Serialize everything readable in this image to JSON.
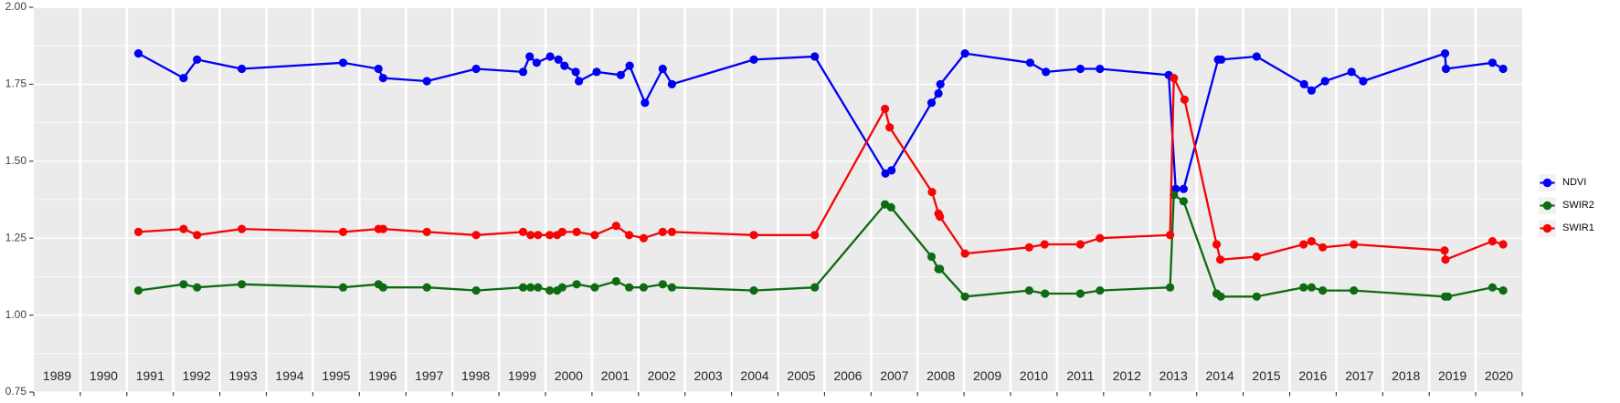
{
  "figure": {
    "background_color": "#FFFFFF",
    "panel_background_color": "#EBEBEB",
    "grid_color": "#FFFFFF",
    "axis_text_color": "#404040",
    "year_label_color": "#262626",
    "tick_color": "#333333"
  },
  "legend": {
    "items": [
      {
        "label": "NDVI",
        "color": "#0000F5"
      },
      {
        "label": "SWIR2",
        "color": "#0E6B12"
      },
      {
        "label": "SWIR1",
        "color": "#F50505"
      }
    ],
    "key_background": "#F2F2F2"
  },
  "chart_data": {
    "type": "line",
    "title": "",
    "xlabel": "",
    "ylabel": "",
    "ylim": [
      0.75,
      2.0
    ],
    "xlim": [
      1989,
      2021
    ],
    "grid": "on",
    "legend_position": "right",
    "y_tick_labels": [
      "2.00",
      "1.75",
      "1.50",
      "1.25",
      "1.00",
      "0.75"
    ],
    "y_tick_values": [
      2.0,
      1.75,
      1.5,
      1.25,
      1.0,
      0.75
    ],
    "y_minor_values": [
      1.875,
      1.625,
      1.375,
      1.125,
      0.875
    ],
    "x_years": [
      1989,
      1990,
      1991,
      1992,
      1993,
      1994,
      1995,
      1996,
      1997,
      1998,
      1999,
      2000,
      2001,
      2002,
      2003,
      2004,
      2005,
      2006,
      2007,
      2008,
      2009,
      2010,
      2011,
      2012,
      2013,
      2014,
      2015,
      2016,
      2017,
      2018,
      2019,
      2020
    ],
    "x_note": "x values are fractional years (year + day-of-year fraction); years 1989, 1990, 1994, 2003, 2006, 2012 and 2018 have no observations",
    "series": [
      {
        "name": "NDVI",
        "color": "#0000F5",
        "points": [
          [
            1991.25,
            1.85
          ],
          [
            1992.22,
            1.77
          ],
          [
            1992.51,
            1.83
          ],
          [
            1993.47,
            1.8
          ],
          [
            1995.65,
            1.82
          ],
          [
            1996.41,
            1.8
          ],
          [
            1996.51,
            1.77
          ],
          [
            1997.45,
            1.76
          ],
          [
            1998.51,
            1.8
          ],
          [
            1999.52,
            1.79
          ],
          [
            1999.66,
            1.84
          ],
          [
            1999.81,
            1.82
          ],
          [
            2000.1,
            1.84
          ],
          [
            2000.28,
            1.83
          ],
          [
            2000.41,
            1.81
          ],
          [
            2000.65,
            1.79
          ],
          [
            2000.72,
            1.76
          ],
          [
            2001.1,
            1.79
          ],
          [
            2001.62,
            1.78
          ],
          [
            2001.81,
            1.81
          ],
          [
            2002.14,
            1.69
          ],
          [
            2002.52,
            1.8
          ],
          [
            2002.72,
            1.75
          ],
          [
            2004.48,
            1.83
          ],
          [
            2005.79,
            1.84
          ],
          [
            2007.31,
            1.46
          ],
          [
            2007.44,
            1.47
          ],
          [
            2008.3,
            1.69
          ],
          [
            2008.45,
            1.72
          ],
          [
            2008.49,
            1.75
          ],
          [
            2009.02,
            1.85
          ],
          [
            2010.42,
            1.82
          ],
          [
            2010.76,
            1.79
          ],
          [
            2011.5,
            1.8
          ],
          [
            2011.92,
            1.8
          ],
          [
            2013.4,
            1.78
          ],
          [
            2013.55,
            1.41
          ],
          [
            2013.72,
            1.41
          ],
          [
            2014.46,
            1.83
          ],
          [
            2014.53,
            1.83
          ],
          [
            2015.29,
            1.84
          ],
          [
            2016.31,
            1.75
          ],
          [
            2016.47,
            1.73
          ],
          [
            2016.76,
            1.76
          ],
          [
            2017.33,
            1.79
          ],
          [
            2017.58,
            1.76
          ],
          [
            2019.34,
            1.85
          ],
          [
            2019.36,
            1.8
          ],
          [
            2020.36,
            1.82
          ],
          [
            2020.59,
            1.8
          ]
        ]
      },
      {
        "name": "SWIR2",
        "color": "#0E6B12",
        "points": [
          [
            1991.25,
            1.08
          ],
          [
            1992.22,
            1.1
          ],
          [
            1992.51,
            1.09
          ],
          [
            1993.47,
            1.1
          ],
          [
            1995.65,
            1.09
          ],
          [
            1996.41,
            1.1
          ],
          [
            1996.51,
            1.09
          ],
          [
            1997.45,
            1.09
          ],
          [
            1998.51,
            1.08
          ],
          [
            1999.52,
            1.09
          ],
          [
            1999.68,
            1.09
          ],
          [
            1999.84,
            1.09
          ],
          [
            2000.09,
            1.08
          ],
          [
            2000.25,
            1.08
          ],
          [
            2000.36,
            1.09
          ],
          [
            2000.67,
            1.1
          ],
          [
            2001.06,
            1.09
          ],
          [
            2001.52,
            1.11
          ],
          [
            2001.8,
            1.09
          ],
          [
            2002.11,
            1.09
          ],
          [
            2002.52,
            1.1
          ],
          [
            2002.72,
            1.09
          ],
          [
            2004.48,
            1.08
          ],
          [
            2005.79,
            1.09
          ],
          [
            2007.3,
            1.36
          ],
          [
            2007.43,
            1.35
          ],
          [
            2008.3,
            1.19
          ],
          [
            2008.45,
            1.15
          ],
          [
            2008.48,
            1.15
          ],
          [
            2009.02,
            1.06
          ],
          [
            2010.4,
            1.08
          ],
          [
            2010.74,
            1.07
          ],
          [
            2011.5,
            1.07
          ],
          [
            2011.92,
            1.08
          ],
          [
            2013.43,
            1.09
          ],
          [
            2013.51,
            1.39
          ],
          [
            2013.72,
            1.37
          ],
          [
            2014.43,
            1.07
          ],
          [
            2014.52,
            1.06
          ],
          [
            2015.29,
            1.06
          ],
          [
            2016.3,
            1.09
          ],
          [
            2016.47,
            1.09
          ],
          [
            2016.71,
            1.08
          ],
          [
            2017.38,
            1.08
          ],
          [
            2019.34,
            1.06
          ],
          [
            2019.4,
            1.06
          ],
          [
            2020.36,
            1.09
          ],
          [
            2020.59,
            1.08
          ]
        ]
      },
      {
        "name": "SWIR1",
        "color": "#F50505",
        "points": [
          [
            1991.25,
            1.27
          ],
          [
            1992.22,
            1.28
          ],
          [
            1992.51,
            1.26
          ],
          [
            1993.47,
            1.28
          ],
          [
            1995.65,
            1.27
          ],
          [
            1996.41,
            1.28
          ],
          [
            1996.51,
            1.28
          ],
          [
            1997.45,
            1.27
          ],
          [
            1998.51,
            1.26
          ],
          [
            1999.52,
            1.27
          ],
          [
            1999.68,
            1.26
          ],
          [
            1999.84,
            1.26
          ],
          [
            2000.09,
            1.26
          ],
          [
            2000.25,
            1.26
          ],
          [
            2000.36,
            1.27
          ],
          [
            2000.67,
            1.27
          ],
          [
            2001.06,
            1.26
          ],
          [
            2001.52,
            1.29
          ],
          [
            2001.8,
            1.26
          ],
          [
            2002.11,
            1.25
          ],
          [
            2002.52,
            1.27
          ],
          [
            2002.72,
            1.27
          ],
          [
            2004.48,
            1.26
          ],
          [
            2005.79,
            1.26
          ],
          [
            2007.3,
            1.67
          ],
          [
            2007.4,
            1.61
          ],
          [
            2008.31,
            1.4
          ],
          [
            2008.45,
            1.33
          ],
          [
            2008.48,
            1.32
          ],
          [
            2009.02,
            1.2
          ],
          [
            2010.4,
            1.22
          ],
          [
            2010.73,
            1.23
          ],
          [
            2011.5,
            1.23
          ],
          [
            2011.92,
            1.25
          ],
          [
            2013.43,
            1.26
          ],
          [
            2013.51,
            1.77
          ],
          [
            2013.74,
            1.7
          ],
          [
            2014.43,
            1.23
          ],
          [
            2014.51,
            1.18
          ],
          [
            2015.29,
            1.19
          ],
          [
            2016.3,
            1.23
          ],
          [
            2016.47,
            1.24
          ],
          [
            2016.71,
            1.22
          ],
          [
            2017.38,
            1.23
          ],
          [
            2019.33,
            1.21
          ],
          [
            2019.35,
            1.18
          ],
          [
            2020.36,
            1.24
          ],
          [
            2020.59,
            1.23
          ]
        ]
      }
    ]
  }
}
